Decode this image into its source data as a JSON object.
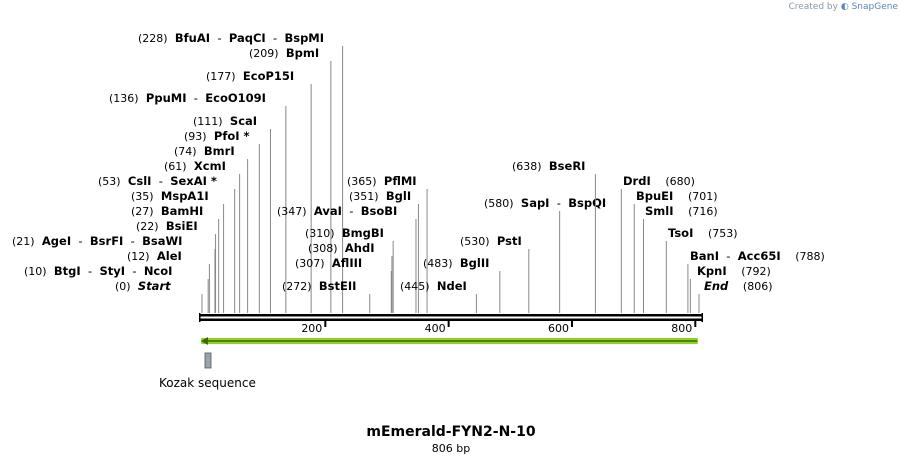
{
  "credit": {
    "prefix": "Created by",
    "brand": "SnapGene"
  },
  "plasmid": {
    "name": "mEmerald-FYN2-N-10",
    "length_label": "806 bp",
    "length": 806
  },
  "features": [
    {
      "name": "Kozak sequence",
      "start": 3,
      "end": 12,
      "color": "#9aa4b0"
    },
    {
      "name": "arrow",
      "start": 1,
      "end": 806,
      "color": "#8fd12a"
    }
  ],
  "ticks": [
    {
      "value": 200,
      "label": "200"
    },
    {
      "value": 400,
      "label": "400"
    },
    {
      "value": 600,
      "label": "600"
    },
    {
      "value": 800,
      "label": "800"
    }
  ],
  "left_labels": [
    {
      "pos": "(228)",
      "enzymes": [
        "BfuAI",
        "PaqCI",
        "BspMI"
      ],
      "cut": 228
    },
    {
      "pos": "(209)",
      "enzymes": [
        "BpmI"
      ],
      "cut": 209
    },
    {
      "pos": "(177)",
      "enzymes": [
        "EcoP15I"
      ],
      "cut": 177
    },
    {
      "pos": "(136)",
      "enzymes": [
        "PpuMI",
        "EcoO109I"
      ],
      "cut": 136
    },
    {
      "pos": "(111)",
      "enzymes": [
        "ScaI"
      ],
      "cut": 111
    },
    {
      "pos": "(93)",
      "enzymes": [
        "PfoI *"
      ],
      "cut": 93
    },
    {
      "pos": "(74)",
      "enzymes": [
        "BmrI"
      ],
      "cut": 74
    },
    {
      "pos": "(61)",
      "enzymes": [
        "XcmI"
      ],
      "cut": 61
    },
    {
      "pos": "(53)",
      "enzymes": [
        "CslI",
        "SexAI *"
      ],
      "cut": 53
    },
    {
      "pos": "(35)",
      "enzymes": [
        "MspA1I"
      ],
      "cut": 35
    },
    {
      "pos": "(27)",
      "enzymes": [
        "BamHI"
      ],
      "cut": 27
    },
    {
      "pos": "(22)",
      "enzymes": [
        "BsiEI"
      ],
      "cut": 22
    },
    {
      "pos": "(21)",
      "enzymes": [
        "AgeI",
        "BsrFI",
        "BsaWI"
      ],
      "cut": 21
    },
    {
      "pos": "(12)",
      "enzymes": [
        "AleI"
      ],
      "cut": 12
    },
    {
      "pos": "(10)",
      "enzymes": [
        "BtgI",
        "StyI",
        "NcoI"
      ],
      "cut": 10
    },
    {
      "pos": "(0)",
      "enzymes": [
        "Start"
      ],
      "cut": 0,
      "italic": true
    }
  ],
  "mid_labels": [
    {
      "pos": "(365)",
      "enzymes": [
        "PflMI"
      ],
      "cut": 365
    },
    {
      "pos": "(351)",
      "enzymes": [
        "BglI"
      ],
      "cut": 351
    },
    {
      "pos": "(347)",
      "enzymes": [
        "AvaI",
        "BsoBI"
      ],
      "cut": 347
    },
    {
      "pos": "(310)",
      "enzymes": [
        "BmgBI"
      ],
      "cut": 310
    },
    {
      "pos": "(308)",
      "enzymes": [
        "AhdI"
      ],
      "cut": 308
    },
    {
      "pos": "(307)",
      "enzymes": [
        "AflIII"
      ],
      "cut": 307
    },
    {
      "pos": "(272)",
      "enzymes": [
        "BstEII"
      ],
      "cut": 272
    },
    {
      "pos": "(445)",
      "enzymes": [
        "NdeI"
      ],
      "cut": 445
    },
    {
      "pos": "(483)",
      "enzymes": [
        "BglII"
      ],
      "cut": 483
    },
    {
      "pos": "(530)",
      "enzymes": [
        "PstI"
      ],
      "cut": 530
    },
    {
      "pos": "(580)",
      "enzymes": [
        "SapI",
        "BspQI"
      ],
      "cut": 580
    },
    {
      "pos": "(638)",
      "enzymes": [
        "BseRI"
      ],
      "cut": 638
    }
  ],
  "right_labels": [
    {
      "pos": "(680)",
      "enzymes": [
        "DrdI"
      ],
      "cut": 680
    },
    {
      "pos": "(701)",
      "enzymes": [
        "BpuEI"
      ],
      "cut": 701
    },
    {
      "pos": "(716)",
      "enzymes": [
        "SmlI"
      ],
      "cut": 716
    },
    {
      "pos": "(753)",
      "enzymes": [
        "TsoI"
      ],
      "cut": 753
    },
    {
      "pos": "(788)",
      "enzymes": [
        "BanI",
        "Acc65I"
      ],
      "cut": 788
    },
    {
      "pos": "(792)",
      "enzymes": [
        "KpnI"
      ],
      "cut": 792
    },
    {
      "pos": "(806)",
      "enzymes": [
        "End"
      ],
      "cut": 806,
      "italic": true
    }
  ]
}
